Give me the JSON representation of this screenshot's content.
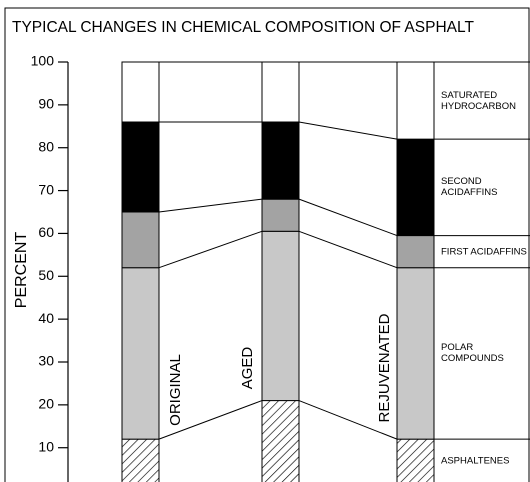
{
  "chart_data": {
    "type": "stacked_bar",
    "title": "TYPICAL CHANGES IN CHEMICAL COMPOSITION OF ASPHALT",
    "y_label": "PERCENT",
    "categories": [
      "ORIGINAL",
      "AGED",
      "REJUVENATED"
    ],
    "series": [
      {
        "name": "ASPHALTENES",
        "color": "#ffffff",
        "pattern": "hatch",
        "values": [
          12,
          21,
          12
        ]
      },
      {
        "name": "POLAR COMPOUNDS",
        "color": "#c8c8c8",
        "values": [
          40,
          39.5,
          40
        ]
      },
      {
        "name": "FIRST ACIDAFFINS",
        "color": "#a3a3a3",
        "values": [
          13,
          7.5,
          7.5
        ]
      },
      {
        "name": "SECOND ACIDAFFINS",
        "color": "#000000",
        "values": [
          21,
          18,
          22.5
        ]
      },
      {
        "name": "SATURATED HYDROCARBON",
        "color": "#ffffff",
        "values": [
          14,
          14,
          18
        ]
      }
    ],
    "ylim": [
      2,
      100
    ],
    "yticks": [
      10,
      20,
      30,
      40,
      50,
      60,
      70,
      80,
      90,
      100
    ]
  }
}
